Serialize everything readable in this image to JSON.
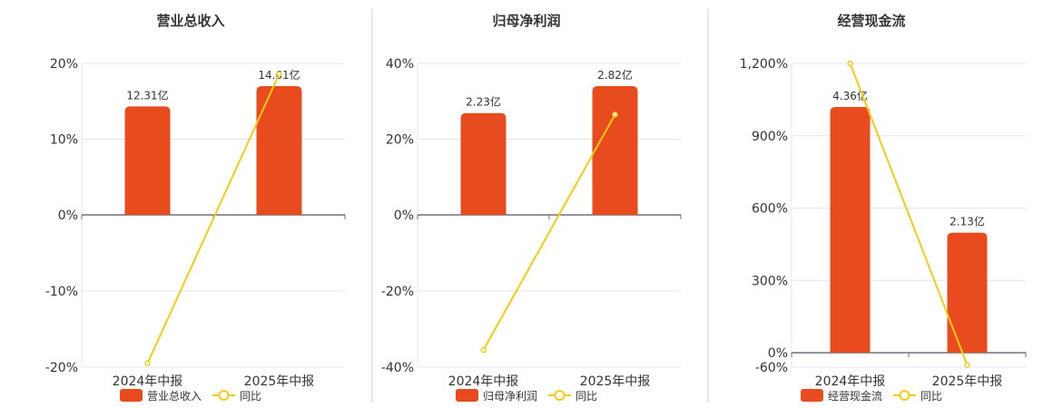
{
  "colors": {
    "bar": "#e84c1e",
    "line": "#f5cc14",
    "axis": "#6e7079",
    "grid": "#e0e6f1",
    "divider": "#cccccc"
  },
  "chart_data": [
    {
      "type": "bar+line",
      "title": "营业总收入",
      "categories": [
        "2024年中报",
        "2025年中报"
      ],
      "bar_series": {
        "name": "营业总收入",
        "values": [
          12.31,
          14.61
        ],
        "labels": [
          "12.31亿",
          "14.61亿"
        ],
        "unit": "亿"
      },
      "line_series": {
        "name": "同比",
        "values": [
          -19.5,
          18.6
        ],
        "unit": "%"
      },
      "y_ticks": [
        "20%",
        "10%",
        "0%",
        "-10%",
        "-20%"
      ],
      "ylim": [
        -20,
        20
      ],
      "legend_position": "bottom"
    },
    {
      "type": "bar+line",
      "title": "归母净利润",
      "categories": [
        "2024年中报",
        "2025年中报"
      ],
      "bar_series": {
        "name": "归母净利润",
        "values": [
          2.23,
          2.82
        ],
        "labels": [
          "2.23亿",
          "2.82亿"
        ],
        "unit": "亿"
      },
      "line_series": {
        "name": "同比",
        "values": [
          -35.5,
          26.5
        ],
        "unit": "%"
      },
      "y_ticks": [
        "40%",
        "20%",
        "0%",
        "-20%",
        "-40%"
      ],
      "ylim": [
        -40,
        40
      ],
      "legend_position": "bottom"
    },
    {
      "type": "bar+line",
      "title": "经营现金流",
      "categories": [
        "2024年中报",
        "2025年中报"
      ],
      "bar_series": {
        "name": "经营现金流",
        "values": [
          4.36,
          2.13
        ],
        "labels": [
          "4.36亿",
          "2.13亿"
        ],
        "unit": "亿"
      },
      "line_series": {
        "name": "同比",
        "values": [
          1200,
          -51.1
        ],
        "unit": "%"
      },
      "y_ticks": [
        "1,200%",
        "900%",
        "600%",
        "300%",
        "0%",
        "-60%"
      ],
      "ylim": [
        -60,
        1200
      ],
      "legend_position": "bottom"
    }
  ]
}
